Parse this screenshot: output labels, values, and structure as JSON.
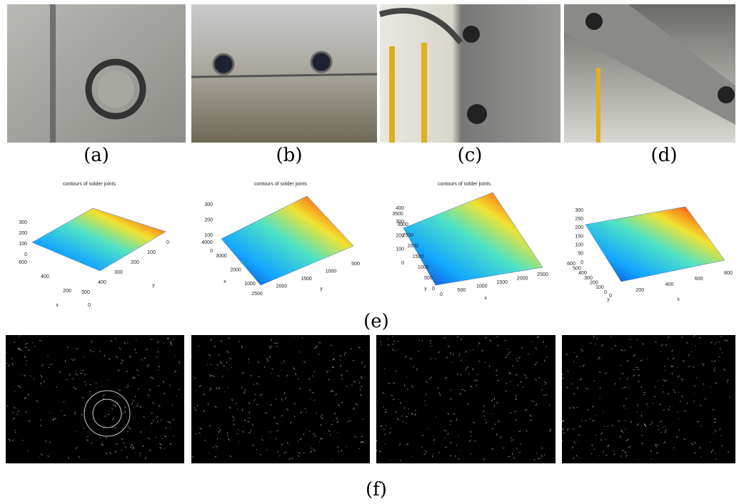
{
  "figure": {
    "photo_labels": [
      "(a)",
      "(b)",
      "(c)",
      "(d)"
    ],
    "plots_label": "(e)",
    "edges_label": "(f)",
    "plots": [
      {
        "title": "contours of solder joints",
        "zticks": [
          0,
          100,
          200,
          300
        ],
        "left_ticks": [
          600,
          400,
          200,
          0
        ],
        "bottom_ticks": [
          500,
          400,
          300,
          200,
          100,
          0
        ],
        "left_label": "x",
        "bottom_label": "y"
      },
      {
        "title": "contours of solder joints",
        "zticks": [
          0,
          100,
          200,
          300
        ],
        "left_ticks": [
          4000,
          3000,
          2000,
          1000
        ],
        "bottom_ticks": [
          2500,
          2000,
          1500,
          1000,
          500
        ],
        "left_label": "x",
        "bottom_label": "y"
      },
      {
        "title": "contours of solder joints",
        "zticks": [
          0,
          100,
          200,
          300,
          400
        ],
        "left_ticks": [
          3500,
          3000,
          2500,
          2000,
          1500,
          1000,
          500,
          0
        ],
        "bottom_ticks": [
          0,
          500,
          1000,
          1500,
          2000,
          2500
        ],
        "left_label": "y",
        "bottom_label": "x"
      },
      {
        "zticks": [
          0,
          50,
          100,
          150,
          200,
          250,
          300
        ],
        "left_ticks": [
          600,
          500,
          400,
          300,
          200,
          100,
          0
        ],
        "bottom_ticks": [
          0,
          200,
          400,
          600,
          800
        ],
        "left_label": "y",
        "bottom_label": "x"
      }
    ]
  }
}
